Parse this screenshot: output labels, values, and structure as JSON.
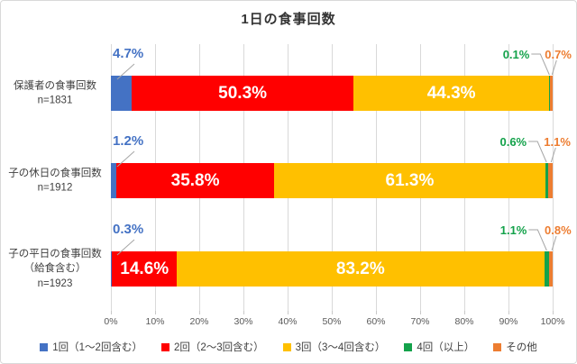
{
  "title": "1日の食事回数",
  "chart_data": {
    "type": "bar",
    "orientation": "horizontal",
    "stacked": true,
    "title": "1日の食事回数",
    "categories": [
      [
        "保護者の食事回数",
        "n=1831"
      ],
      [
        "子の休日の食事回数",
        "n=1912"
      ],
      [
        "子の平日の食事回数",
        "（給食含む）",
        "n=1923"
      ]
    ],
    "series": [
      {
        "name": "1回（1～2回含む）",
        "color": "#4472c4",
        "values": [
          4.7,
          1.2,
          0.3
        ]
      },
      {
        "name": "2回（2～3回含む）",
        "color": "#ff0000",
        "values": [
          50.3,
          35.8,
          14.6
        ]
      },
      {
        "name": "3回（3～4回含む）",
        "color": "#ffc000",
        "values": [
          44.3,
          61.3,
          83.2
        ]
      },
      {
        "name": "4回（以上）",
        "color": "#14a24b",
        "values": [
          0.1,
          0.6,
          1.1
        ]
      },
      {
        "name": "その他",
        "color": "#ed7d31",
        "values": [
          0.7,
          1.1,
          0.8
        ]
      }
    ],
    "x_ticks": [
      "0%",
      "10%",
      "20%",
      "30%",
      "40%",
      "50%",
      "60%",
      "70%",
      "80%",
      "90%",
      "100%"
    ],
    "xlim": [
      0,
      100
    ],
    "grid": true,
    "legend_position": "bottom",
    "data_label_format": "one_decimal_percent"
  }
}
